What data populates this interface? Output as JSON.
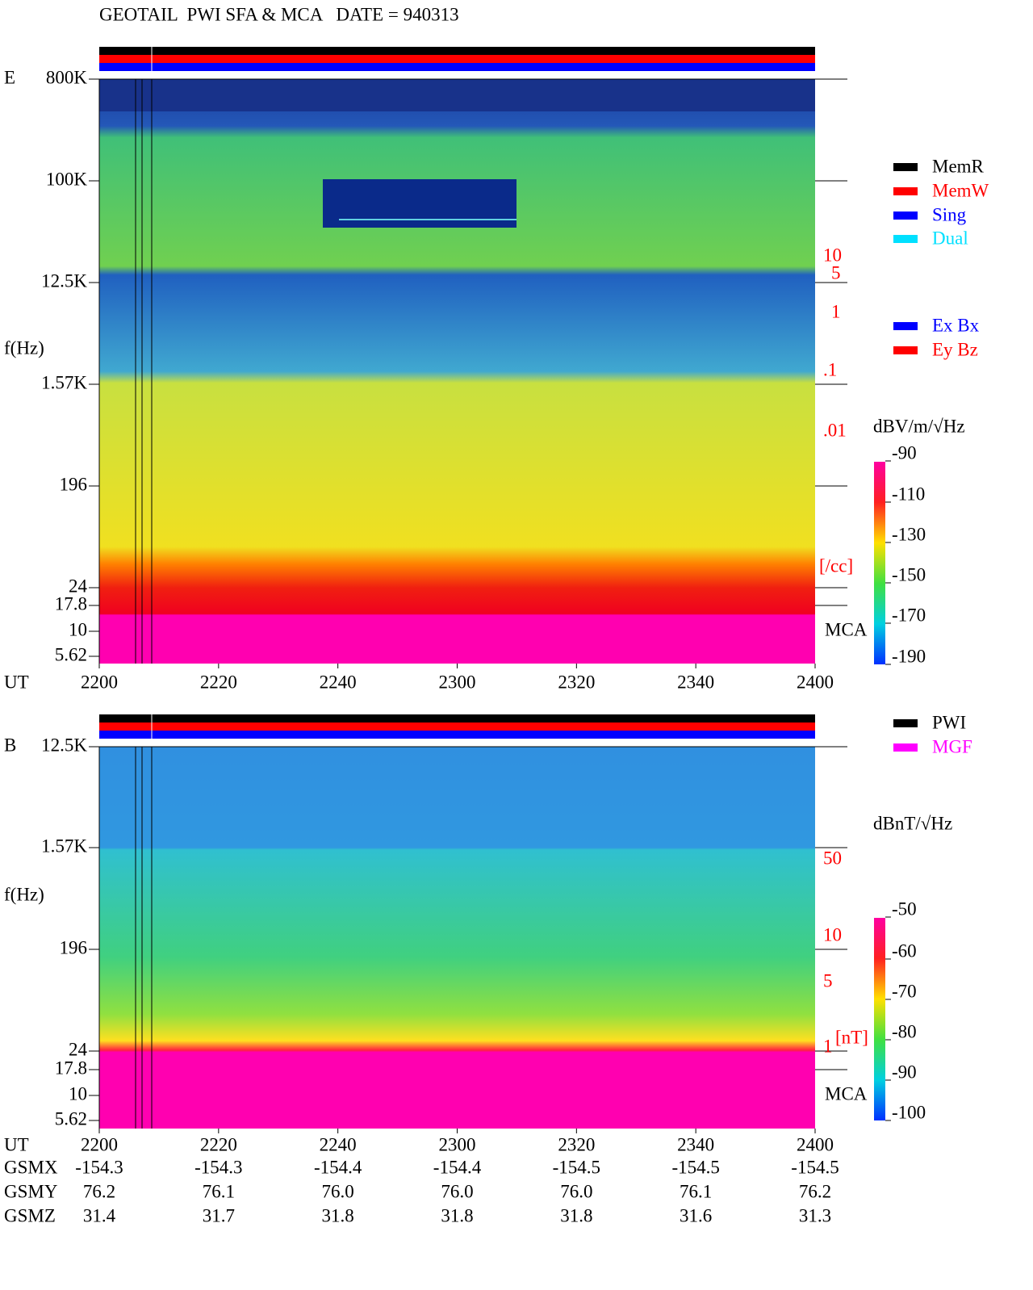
{
  "header": {
    "title": "GEOTAIL  PWI SFA & MCA   DATE = 940313"
  },
  "panels": [
    {
      "label": "E",
      "y_label": "f(Hz)",
      "y_ticks": [
        "800K",
        "100K",
        "12.5K",
        "1.57K",
        "196",
        "24",
        "17.8",
        "10",
        "5.62"
      ],
      "x_label": "UT",
      "x_ticks": [
        "2200",
        "2220",
        "2240",
        "2300",
        "2320",
        "2340",
        "2400"
      ],
      "right_labels": [
        "10",
        "5",
        "1",
        ".1",
        ".01",
        "[/cc]"
      ],
      "mca_label": "MCA",
      "legend": [
        {
          "label": "MemR",
          "color": "#000000"
        },
        {
          "label": "MemW",
          "color": "#ff0000"
        },
        {
          "label": "Sing",
          "color": "#0000ff"
        },
        {
          "label": "Dual",
          "color": "#00e0ff"
        }
      ],
      "legend2": [
        {
          "label": "Ex Bx",
          "color": "#0000ff"
        },
        {
          "label": "Ey Bz",
          "color": "#ff0000"
        }
      ],
      "colorbar": {
        "unit": "dBV/m/√Hz",
        "ticks": [
          "-90",
          "-110",
          "-130",
          "-150",
          "-170",
          "-190"
        ]
      }
    },
    {
      "label": "B",
      "y_label": "f(Hz)",
      "y_ticks": [
        "12.5K",
        "1.57K",
        "196",
        "24",
        "17.8",
        "10",
        "5.62"
      ],
      "x_label": "UT",
      "x_ticks": [
        "2200",
        "2220",
        "2240",
        "2300",
        "2320",
        "2340",
        "2400"
      ],
      "right_labels": [
        "50",
        "10",
        "5",
        "1",
        "[nT]"
      ],
      "mca_label": "MCA",
      "legend": [
        {
          "label": "PWI",
          "color": "#000000"
        },
        {
          "label": "MGF",
          "color": "#ff00ff"
        }
      ],
      "colorbar": {
        "unit": "dBnT/√Hz",
        "ticks": [
          "-50",
          "-60",
          "-70",
          "-80",
          "-90",
          "-100"
        ]
      }
    }
  ],
  "orbit": {
    "rows": [
      {
        "label": "GSMX",
        "values": [
          "-154.3",
          "-154.3",
          "-154.4",
          "-154.4",
          "-154.5",
          "-154.5",
          "-154.5"
        ]
      },
      {
        "label": "GSMY",
        "values": [
          "76.2",
          "76.1",
          "76.0",
          "76.0",
          "76.0",
          "76.1",
          "76.2"
        ]
      },
      {
        "label": "GSMZ",
        "values": [
          "31.4",
          "31.7",
          "31.8",
          "31.8",
          "31.8",
          "31.6",
          "31.3"
        ]
      }
    ]
  }
}
